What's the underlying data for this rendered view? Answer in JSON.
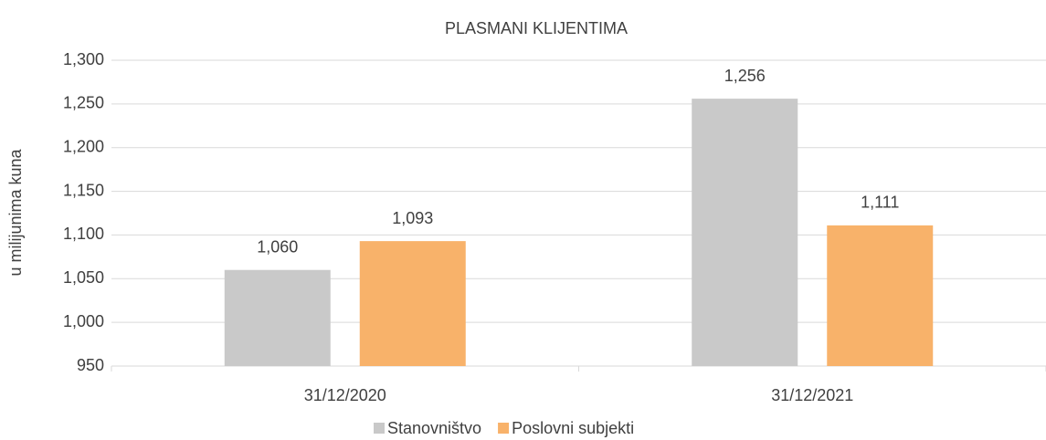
{
  "chart_data": {
    "type": "bar",
    "title": "PLASMANI KLIJENTIMA",
    "y_label": "u milijunima kuna",
    "categories": [
      "31/12/2020",
      "31/12/2021"
    ],
    "series": [
      {
        "name": "Stanovništvo",
        "color": "#c9c9c9",
        "values": [
          1060,
          1256
        ],
        "value_labels": [
          "1,060",
          "1,256"
        ]
      },
      {
        "name": "Poslovni subjekti",
        "color": "#f8b26a",
        "values": [
          1093,
          1111
        ],
        "value_labels": [
          "1,093",
          "1,111"
        ]
      }
    ],
    "ylim": [
      950,
      1300
    ],
    "yticks": [
      {
        "value": 950,
        "label": "950"
      },
      {
        "value": 1000,
        "label": "1,000"
      },
      {
        "value": 1050,
        "label": "1,050"
      },
      {
        "value": 1100,
        "label": "1,100"
      },
      {
        "value": 1150,
        "label": "1,150"
      },
      {
        "value": 1200,
        "label": "1,200"
      },
      {
        "value": 1250,
        "label": "1,250"
      },
      {
        "value": 1300,
        "label": "1,300"
      }
    ],
    "grid": true,
    "legend": "bottom"
  }
}
